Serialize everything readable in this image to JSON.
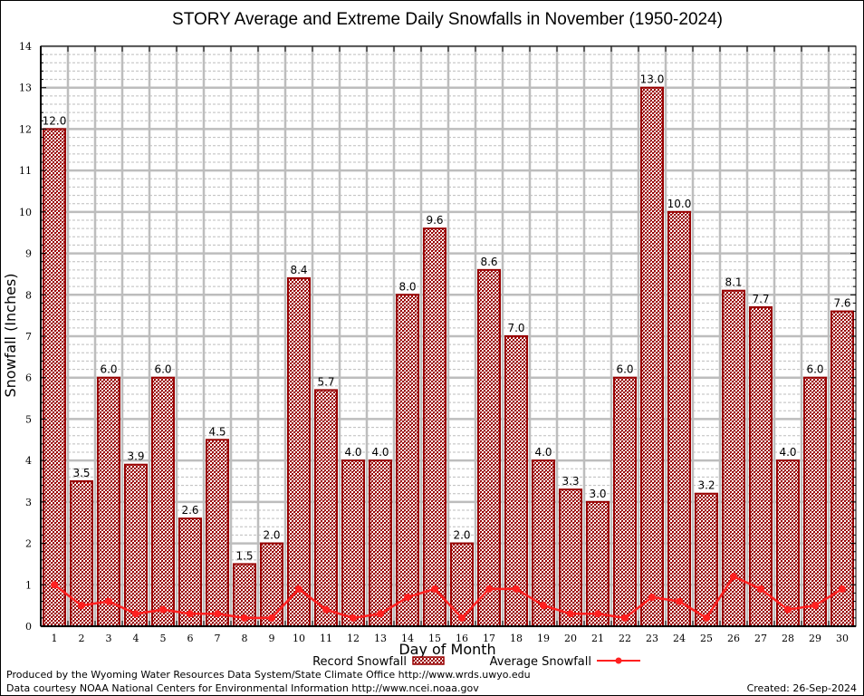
{
  "chart_data": {
    "type": "bar",
    "title": "STORY Average and Extreme Daily Snowfalls in November (1950-2024)",
    "xlabel": "Day of Month",
    "ylabel": "Snowfall (Inches)",
    "ylim": [
      0,
      14
    ],
    "yticks": [
      0,
      1,
      2,
      3,
      4,
      5,
      6,
      7,
      8,
      9,
      10,
      11,
      12,
      13,
      14
    ],
    "grid": true,
    "categories": [
      1,
      2,
      3,
      4,
      5,
      6,
      7,
      8,
      9,
      10,
      11,
      12,
      13,
      14,
      15,
      16,
      17,
      18,
      19,
      20,
      21,
      22,
      23,
      24,
      25,
      26,
      27,
      28,
      29,
      30
    ],
    "series": [
      {
        "name": "Record Snowfall",
        "type": "bar",
        "color": "#990000",
        "values": [
          12.0,
          3.5,
          6.0,
          3.9,
          6.0,
          2.6,
          4.5,
          1.5,
          2.0,
          8.4,
          5.7,
          4.0,
          4.0,
          8.0,
          9.6,
          2.0,
          8.6,
          7.0,
          4.0,
          3.3,
          3.0,
          6.0,
          13.0,
          10.0,
          3.2,
          8.1,
          7.7,
          4.0,
          6.0,
          7.6
        ],
        "labels": [
          "12.0",
          "3.5",
          "6.0",
          "3.9",
          "6.0",
          "2.6",
          "4.5",
          "1.5",
          "2.0",
          "8.4",
          "5.7",
          "4.0",
          "4.0",
          "8.0",
          "9.6",
          "2.0",
          "8.6",
          "7.0",
          "4.0",
          "3.3",
          "3.0",
          "6.0",
          "13.0",
          "10.0",
          "3.2",
          "8.1",
          "7.7",
          "4.0",
          "6.0",
          "7.6"
        ]
      },
      {
        "name": "Average Snowfall",
        "type": "line",
        "color": "#ff2020",
        "values": [
          1.0,
          0.5,
          0.6,
          0.3,
          0.4,
          0.3,
          0.3,
          0.2,
          0.2,
          0.9,
          0.4,
          0.2,
          0.3,
          0.7,
          0.9,
          0.2,
          0.9,
          0.9,
          0.5,
          0.3,
          0.3,
          0.2,
          0.7,
          0.6,
          0.2,
          1.2,
          0.9,
          0.4,
          0.5,
          0.9
        ]
      }
    ],
    "legend": "bottom-center"
  },
  "footer": {
    "line1": "Produced by the Wyoming Water Resources Data System/State Climate Office http://www.wrds.uwyo.edu",
    "line2": "Data courtesy NOAA National Centers for Environmental Information http://www.ncei.noaa.gov",
    "created": "Created: 26-Sep-2024"
  }
}
